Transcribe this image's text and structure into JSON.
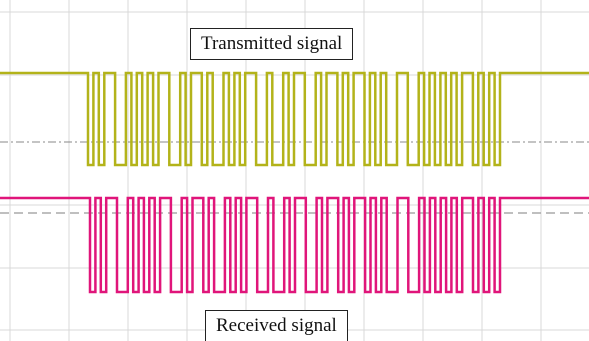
{
  "labels": {
    "transmitted": "Transmitted signal",
    "received": "Received signal"
  }
}
